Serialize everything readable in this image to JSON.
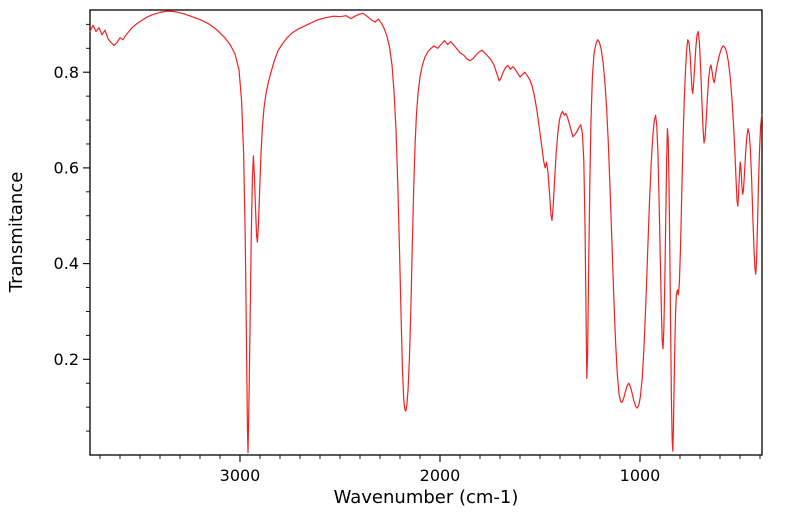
{
  "window": {
    "background": "#ffffff"
  },
  "chart_data": {
    "type": "line",
    "title": "",
    "xlabel": "Wavenumber (cm-1)",
    "ylabel": "Transmitance",
    "legend": "none",
    "grid": false,
    "line_color": "#ee2222",
    "axis_color": "#000000",
    "x_axis": {
      "range": [
        3750,
        390
      ],
      "reversed": true,
      "major_ticks": [
        3000,
        2000,
        1000
      ],
      "major_tick_labels": [
        "3000",
        "2000",
        "1000"
      ],
      "minor_tick_step": 100
    },
    "y_axis": {
      "range": [
        0.0,
        0.93
      ],
      "major_ticks": [
        0.2,
        0.4,
        0.6,
        0.8
      ],
      "major_tick_labels": [
        "0.2",
        "0.4",
        "0.6",
        "0.8"
      ],
      "minor_tick_step": 0.05
    },
    "series": [
      {
        "name": "ir-spectrum",
        "points": [
          [
            3750,
            0.885
          ],
          [
            3735,
            0.898
          ],
          [
            3720,
            0.885
          ],
          [
            3705,
            0.893
          ],
          [
            3690,
            0.878
          ],
          [
            3675,
            0.888
          ],
          [
            3660,
            0.87
          ],
          [
            3645,
            0.862
          ],
          [
            3630,
            0.856
          ],
          [
            3615,
            0.862
          ],
          [
            3600,
            0.872
          ],
          [
            3585,
            0.868
          ],
          [
            3570,
            0.878
          ],
          [
            3555,
            0.885
          ],
          [
            3540,
            0.893
          ],
          [
            3520,
            0.9
          ],
          [
            3500,
            0.906
          ],
          [
            3470,
            0.914
          ],
          [
            3440,
            0.92
          ],
          [
            3400,
            0.925
          ],
          [
            3360,
            0.928
          ],
          [
            3320,
            0.926
          ],
          [
            3280,
            0.922
          ],
          [
            3240,
            0.916
          ],
          [
            3200,
            0.91
          ],
          [
            3160,
            0.902
          ],
          [
            3120,
            0.89
          ],
          [
            3080,
            0.874
          ],
          [
            3050,
            0.858
          ],
          [
            3025,
            0.838
          ],
          [
            3005,
            0.805
          ],
          [
            2992,
            0.74
          ],
          [
            2982,
            0.63
          ],
          [
            2974,
            0.46
          ],
          [
            2968,
            0.25
          ],
          [
            2963,
            0.06
          ],
          [
            2960,
            0.005
          ],
          [
            2956,
            0.09
          ],
          [
            2950,
            0.26
          ],
          [
            2944,
            0.45
          ],
          [
            2938,
            0.58
          ],
          [
            2933,
            0.625
          ],
          [
            2928,
            0.585
          ],
          [
            2922,
            0.51
          ],
          [
            2917,
            0.458
          ],
          [
            2913,
            0.445
          ],
          [
            2908,
            0.48
          ],
          [
            2902,
            0.55
          ],
          [
            2895,
            0.63
          ],
          [
            2888,
            0.685
          ],
          [
            2880,
            0.725
          ],
          [
            2870,
            0.755
          ],
          [
            2858,
            0.78
          ],
          [
            2845,
            0.8
          ],
          [
            2830,
            0.822
          ],
          [
            2810,
            0.845
          ],
          [
            2790,
            0.858
          ],
          [
            2765,
            0.872
          ],
          [
            2740,
            0.882
          ],
          [
            2710,
            0.89
          ],
          [
            2680,
            0.896
          ],
          [
            2650,
            0.902
          ],
          [
            2620,
            0.908
          ],
          [
            2590,
            0.912
          ],
          [
            2560,
            0.915
          ],
          [
            2530,
            0.917
          ],
          [
            2500,
            0.916
          ],
          [
            2470,
            0.918
          ],
          [
            2445,
            0.912
          ],
          [
            2425,
            0.917
          ],
          [
            2405,
            0.921
          ],
          [
            2385,
            0.923
          ],
          [
            2365,
            0.917
          ],
          [
            2345,
            0.91
          ],
          [
            2325,
            0.905
          ],
          [
            2308,
            0.911
          ],
          [
            2292,
            0.902
          ],
          [
            2278,
            0.89
          ],
          [
            2265,
            0.875
          ],
          [
            2252,
            0.852
          ],
          [
            2240,
            0.815
          ],
          [
            2230,
            0.76
          ],
          [
            2220,
            0.68
          ],
          [
            2211,
            0.565
          ],
          [
            2202,
            0.42
          ],
          [
            2194,
            0.28
          ],
          [
            2187,
            0.17
          ],
          [
            2181,
            0.115
          ],
          [
            2176,
            0.095
          ],
          [
            2171,
            0.092
          ],
          [
            2166,
            0.103
          ],
          [
            2160,
            0.135
          ],
          [
            2153,
            0.2
          ],
          [
            2146,
            0.3
          ],
          [
            2139,
            0.43
          ],
          [
            2132,
            0.55
          ],
          [
            2125,
            0.645
          ],
          [
            2118,
            0.71
          ],
          [
            2110,
            0.755
          ],
          [
            2100,
            0.79
          ],
          [
            2088,
            0.815
          ],
          [
            2075,
            0.832
          ],
          [
            2060,
            0.843
          ],
          [
            2045,
            0.85
          ],
          [
            2030,
            0.855
          ],
          [
            2012,
            0.85
          ],
          [
            1995,
            0.858
          ],
          [
            1978,
            0.866
          ],
          [
            1962,
            0.858
          ],
          [
            1946,
            0.864
          ],
          [
            1930,
            0.856
          ],
          [
            1914,
            0.848
          ],
          [
            1898,
            0.84
          ],
          [
            1882,
            0.836
          ],
          [
            1866,
            0.828
          ],
          [
            1850,
            0.824
          ],
          [
            1835,
            0.828
          ],
          [
            1820,
            0.836
          ],
          [
            1805,
            0.842
          ],
          [
            1790,
            0.846
          ],
          [
            1775,
            0.84
          ],
          [
            1760,
            0.833
          ],
          [
            1745,
            0.826
          ],
          [
            1730,
            0.815
          ],
          [
            1716,
            0.797
          ],
          [
            1704,
            0.782
          ],
          [
            1695,
            0.788
          ],
          [
            1684,
            0.8
          ],
          [
            1672,
            0.81
          ],
          [
            1660,
            0.814
          ],
          [
            1648,
            0.806
          ],
          [
            1636,
            0.812
          ],
          [
            1624,
            0.806
          ],
          [
            1612,
            0.798
          ],
          [
            1600,
            0.79
          ],
          [
            1588,
            0.795
          ],
          [
            1576,
            0.8
          ],
          [
            1564,
            0.793
          ],
          [
            1552,
            0.785
          ],
          [
            1540,
            0.772
          ],
          [
            1528,
            0.75
          ],
          [
            1516,
            0.722
          ],
          [
            1504,
            0.685
          ],
          [
            1492,
            0.648
          ],
          [
            1482,
            0.615
          ],
          [
            1474,
            0.6
          ],
          [
            1467,
            0.612
          ],
          [
            1460,
            0.59
          ],
          [
            1452,
            0.545
          ],
          [
            1445,
            0.502
          ],
          [
            1440,
            0.49
          ],
          [
            1434,
            0.52
          ],
          [
            1427,
            0.575
          ],
          [
            1419,
            0.632
          ],
          [
            1411,
            0.672
          ],
          [
            1403,
            0.7
          ],
          [
            1395,
            0.712
          ],
          [
            1387,
            0.718
          ],
          [
            1379,
            0.71
          ],
          [
            1371,
            0.714
          ],
          [
            1362,
            0.705
          ],
          [
            1353,
            0.692
          ],
          [
            1344,
            0.678
          ],
          [
            1335,
            0.665
          ],
          [
            1325,
            0.67
          ],
          [
            1315,
            0.676
          ],
          [
            1305,
            0.685
          ],
          [
            1296,
            0.69
          ],
          [
            1288,
            0.672
          ],
          [
            1281,
            0.615
          ],
          [
            1275,
            0.48
          ],
          [
            1270,
            0.3
          ],
          [
            1266,
            0.16
          ],
          [
            1262,
            0.21
          ],
          [
            1257,
            0.38
          ],
          [
            1251,
            0.565
          ],
          [
            1245,
            0.7
          ],
          [
            1238,
            0.79
          ],
          [
            1230,
            0.838
          ],
          [
            1221,
            0.858
          ],
          [
            1212,
            0.868
          ],
          [
            1203,
            0.863
          ],
          [
            1194,
            0.848
          ],
          [
            1185,
            0.822
          ],
          [
            1176,
            0.782
          ],
          [
            1167,
            0.726
          ],
          [
            1158,
            0.648
          ],
          [
            1149,
            0.548
          ],
          [
            1140,
            0.44
          ],
          [
            1131,
            0.33
          ],
          [
            1122,
            0.235
          ],
          [
            1113,
            0.166
          ],
          [
            1105,
            0.128
          ],
          [
            1097,
            0.112
          ],
          [
            1090,
            0.11
          ],
          [
            1082,
            0.118
          ],
          [
            1073,
            0.132
          ],
          [
            1064,
            0.145
          ],
          [
            1056,
            0.15
          ],
          [
            1048,
            0.143
          ],
          [
            1040,
            0.13
          ],
          [
            1031,
            0.114
          ],
          [
            1022,
            0.102
          ],
          [
            1014,
            0.098
          ],
          [
            1006,
            0.104
          ],
          [
            998,
            0.122
          ],
          [
            989,
            0.16
          ],
          [
            980,
            0.225
          ],
          [
            971,
            0.315
          ],
          [
            962,
            0.42
          ],
          [
            953,
            0.525
          ],
          [
            944,
            0.61
          ],
          [
            936,
            0.665
          ],
          [
            929,
            0.698
          ],
          [
            922,
            0.71
          ],
          [
            916,
            0.688
          ],
          [
            910,
            0.625
          ],
          [
            904,
            0.52
          ],
          [
            898,
            0.4
          ],
          [
            893,
            0.3
          ],
          [
            889,
            0.24
          ],
          [
            885,
            0.222
          ],
          [
            881,
            0.26
          ],
          [
            876,
            0.36
          ],
          [
            871,
            0.5
          ],
          [
            867,
            0.61
          ],
          [
            863,
            0.682
          ],
          [
            859,
            0.66
          ],
          [
            855,
            0.565
          ],
          [
            851,
            0.43
          ],
          [
            847,
            0.27
          ],
          [
            843,
            0.12
          ],
          [
            839,
            0.03
          ],
          [
            836,
            0.008
          ],
          [
            833,
            0.05
          ],
          [
            830,
            0.13
          ],
          [
            826,
            0.225
          ],
          [
            822,
            0.3
          ],
          [
            818,
            0.335
          ],
          [
            813,
            0.345
          ],
          [
            808,
            0.335
          ],
          [
            803,
            0.36
          ],
          [
            797,
            0.44
          ],
          [
            791,
            0.55
          ],
          [
            785,
            0.655
          ],
          [
            779,
            0.74
          ],
          [
            773,
            0.8
          ],
          [
            767,
            0.845
          ],
          [
            761,
            0.868
          ],
          [
            755,
            0.862
          ],
          [
            749,
            0.835
          ],
          [
            744,
            0.795
          ],
          [
            740,
            0.765
          ],
          [
            736,
            0.755
          ],
          [
            732,
            0.775
          ],
          [
            727,
            0.81
          ],
          [
            721,
            0.85
          ],
          [
            715,
            0.878
          ],
          [
            709,
            0.885
          ],
          [
            703,
            0.862
          ],
          [
            697,
            0.81
          ],
          [
            691,
            0.745
          ],
          [
            685,
            0.685
          ],
          [
            680,
            0.652
          ],
          [
            675,
            0.662
          ],
          [
            669,
            0.7
          ],
          [
            663,
            0.748
          ],
          [
            657,
            0.785
          ],
          [
            651,
            0.808
          ],
          [
            645,
            0.815
          ],
          [
            639,
            0.8
          ],
          [
            634,
            0.785
          ],
          [
            629,
            0.778
          ],
          [
            624,
            0.79
          ],
          [
            618,
            0.806
          ],
          [
            611,
            0.822
          ],
          [
            603,
            0.836
          ],
          [
            594,
            0.848
          ],
          [
            585,
            0.855
          ],
          [
            576,
            0.852
          ],
          [
            567,
            0.842
          ],
          [
            558,
            0.822
          ],
          [
            549,
            0.79
          ],
          [
            541,
            0.748
          ],
          [
            533,
            0.695
          ],
          [
            526,
            0.638
          ],
          [
            520,
            0.578
          ],
          [
            515,
            0.532
          ],
          [
            511,
            0.52
          ],
          [
            507,
            0.545
          ],
          [
            503,
            0.585
          ],
          [
            499,
            0.612
          ],
          [
            495,
            0.6
          ],
          [
            491,
            0.565
          ],
          [
            487,
            0.545
          ],
          [
            483,
            0.552
          ],
          [
            478,
            0.585
          ],
          [
            472,
            0.63
          ],
          [
            466,
            0.665
          ],
          [
            460,
            0.682
          ],
          [
            454,
            0.672
          ],
          [
            448,
            0.638
          ],
          [
            442,
            0.578
          ],
          [
            436,
            0.5
          ],
          [
            430,
            0.43
          ],
          [
            425,
            0.388
          ],
          [
            421,
            0.378
          ],
          [
            417,
            0.41
          ],
          [
            412,
            0.49
          ],
          [
            407,
            0.575
          ],
          [
            402,
            0.64
          ],
          [
            397,
            0.685
          ],
          [
            392,
            0.708
          ],
          [
            390,
            0.712
          ]
        ]
      }
    ]
  }
}
